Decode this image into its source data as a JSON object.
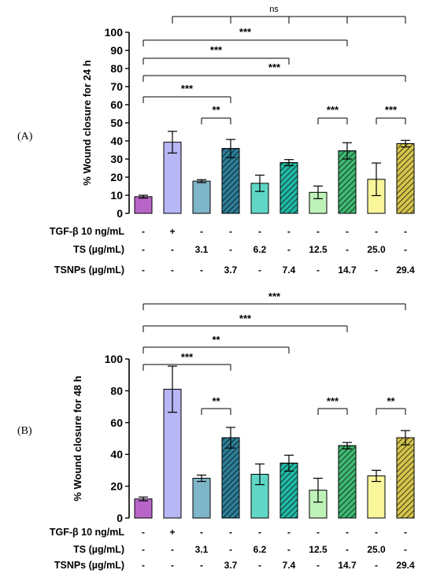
{
  "chart_data": [
    {
      "panel": "(A)",
      "type": "bar",
      "ylabel": "% Wound closure for 24 h",
      "ylim": [
        0,
        100
      ],
      "yticks": [
        0,
        10,
        20,
        30,
        40,
        50,
        60,
        70,
        80,
        90,
        100
      ],
      "values": [
        9.2,
        39.3,
        17.8,
        35.8,
        16.6,
        28.0,
        11.6,
        34.5,
        18.8,
        38.5
      ],
      "errors": [
        0.8,
        6.0,
        0.8,
        5.0,
        4.5,
        1.7,
        3.5,
        4.5,
        9.0,
        1.8
      ],
      "colors": [
        "#b766c7",
        "#b7b7f5",
        "#7fb5c8",
        "#2e7d96",
        "#5fd6c6",
        "#22b8a4",
        "#bff2b8",
        "#3fb872",
        "#f8f59a",
        "#d4c44c"
      ],
      "hatched": [
        false,
        false,
        false,
        true,
        false,
        true,
        false,
        true,
        false,
        true
      ],
      "treatment_rows": [
        {
          "label": "TGF-β 10 ng/mL",
          "values": [
            "-",
            "+",
            "-",
            "-",
            "-",
            "-",
            "-",
            "-",
            "-",
            "-"
          ]
        },
        {
          "label": "TS (µg/mL)",
          "values": [
            "-",
            "-",
            "3.1",
            "-",
            "6.2",
            "-",
            "12.5",
            "-",
            "25.0",
            "-"
          ]
        },
        {
          "label": "TSNPs (µg/mL)",
          "values": [
            "-",
            "-",
            "-",
            "3.7",
            "-",
            "7.4",
            "-",
            "14.7",
            "-",
            "29.4"
          ]
        }
      ],
      "comparisons": [
        {
          "from": 0,
          "to": 3,
          "label": "***"
        },
        {
          "from": 2,
          "to": 3,
          "label": "**"
        },
        {
          "from": 6,
          "to": 7,
          "label": "***"
        },
        {
          "from": 8,
          "to": 9,
          "label": "***"
        },
        {
          "from": 0,
          "to": 9,
          "label": "***"
        },
        {
          "from": 0,
          "to": 5,
          "label": "***"
        },
        {
          "from": 0,
          "to": 7,
          "label": "***"
        },
        {
          "targets": [
            1,
            3,
            5,
            7,
            9
          ],
          "label": "ns"
        }
      ]
    },
    {
      "panel": "(B)",
      "type": "bar",
      "ylabel": "% Wound closure for 48 h",
      "ylim": [
        0,
        100
      ],
      "yticks": [
        0,
        20,
        40,
        60,
        80,
        100
      ],
      "values": [
        12.0,
        81.0,
        25.0,
        50.5,
        27.5,
        34.5,
        17.5,
        45.5,
        26.5,
        50.5
      ],
      "errors": [
        1.2,
        14.5,
        2.0,
        6.5,
        6.5,
        5.0,
        7.5,
        2.0,
        3.5,
        4.5
      ],
      "colors": [
        "#b766c7",
        "#b7b7f5",
        "#7fb5c8",
        "#2e7d96",
        "#5fd6c6",
        "#22b8a4",
        "#bff2b8",
        "#3fb872",
        "#f8f59a",
        "#d4c44c"
      ],
      "hatched": [
        false,
        false,
        false,
        true,
        false,
        true,
        false,
        true,
        false,
        true
      ],
      "treatment_rows": [
        {
          "label": "TGF-β 10 ng/mL",
          "values": [
            "-",
            "+",
            "-",
            "-",
            "-",
            "-",
            "-",
            "-",
            "-",
            "-"
          ]
        },
        {
          "label": "TS (µg/mL)",
          "values": [
            "-",
            "-",
            "3.1",
            "-",
            "6.2",
            "-",
            "12.5",
            "-",
            "25.0",
            "-"
          ]
        },
        {
          "label": "TSNPs (µg/mL)",
          "values": [
            "-",
            "-",
            "-",
            "3.7",
            "-",
            "7.4",
            "-",
            "14.7",
            "-",
            "29.4"
          ]
        }
      ],
      "comparisons": [
        {
          "from": 0,
          "to": 3,
          "label": "***"
        },
        {
          "from": 2,
          "to": 3,
          "label": "**"
        },
        {
          "from": 6,
          "to": 7,
          "label": "***"
        },
        {
          "from": 8,
          "to": 9,
          "label": "**"
        },
        {
          "from": 0,
          "to": 5,
          "label": "**"
        },
        {
          "from": 0,
          "to": 7,
          "label": "***"
        },
        {
          "from": 0,
          "to": 9,
          "label": "***"
        }
      ]
    }
  ]
}
